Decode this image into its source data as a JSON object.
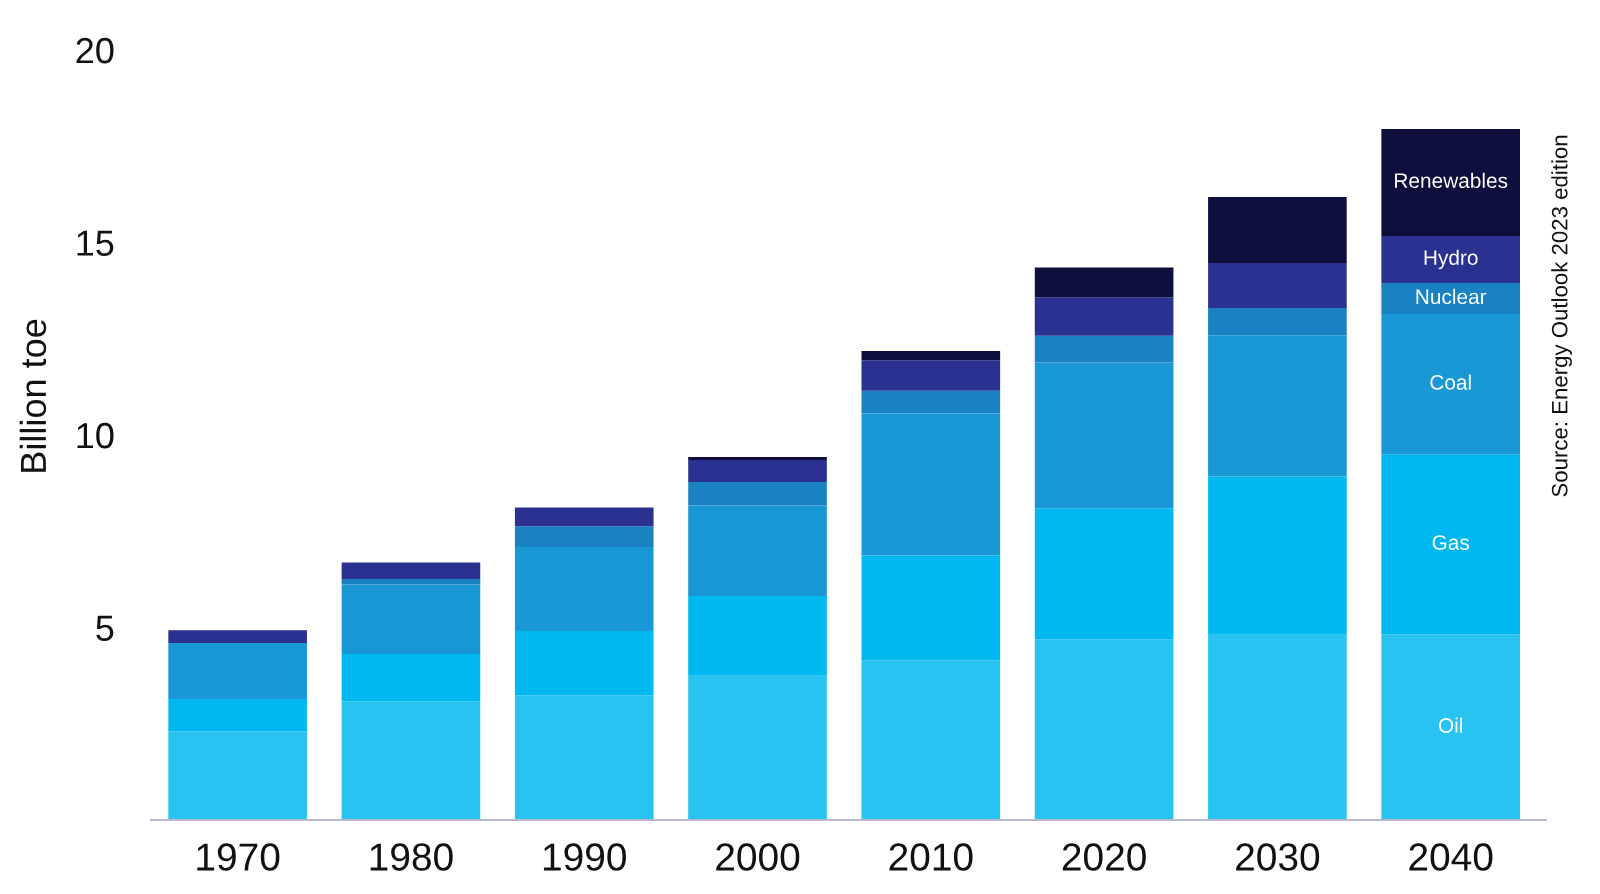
{
  "chart_data": {
    "type": "bar",
    "stacked": true,
    "ylabel": "Billion toe",
    "categories": [
      "1970",
      "1980",
      "1990",
      "2000",
      "2010",
      "2020",
      "2030",
      "2040"
    ],
    "ylim": [
      0,
      20
    ],
    "yticks": [
      5,
      10,
      15,
      20
    ],
    "series": [
      {
        "name": "Oil",
        "color": "#29c3f2",
        "values": [
          2.3,
          3.08,
          3.24,
          3.75,
          4.15,
          4.69,
          4.81,
          4.82
        ]
      },
      {
        "name": "Gas",
        "color": "#00b8f0",
        "values": [
          0.84,
          1.23,
          1.67,
          2.07,
          2.72,
          3.41,
          4.11,
          4.68
        ]
      },
      {
        "name": "Coal",
        "color": "#1a98d5",
        "values": [
          1.46,
          1.81,
          2.18,
          2.35,
          3.69,
          3.78,
          3.67,
          3.64
        ]
      },
      {
        "name": "Nuclear",
        "color": "#1a82c3",
        "values": [
          null,
          0.14,
          0.54,
          0.61,
          0.59,
          0.7,
          0.71,
          0.81
        ]
      },
      {
        "name": "Hydro",
        "color": "#2b3190",
        "values": [
          0.33,
          0.43,
          0.49,
          0.57,
          0.79,
          1.0,
          1.17,
          1.22
        ]
      },
      {
        "name": "Renewables",
        "color": "#0e0f3d",
        "values": [
          null,
          null,
          null,
          0.08,
          0.24,
          0.77,
          1.71,
          2.78
        ]
      }
    ],
    "annotations": [
      "Source: Energy Outlook 2023 edition"
    ]
  }
}
